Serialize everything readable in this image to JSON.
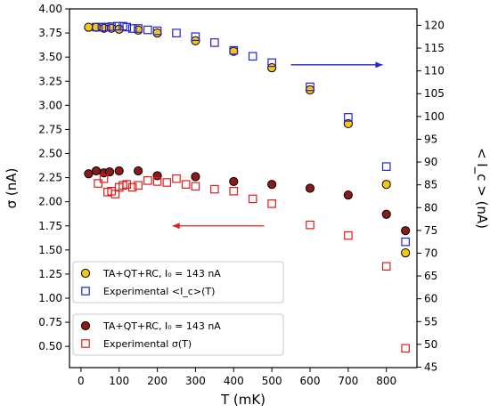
{
  "chart_data": {
    "type": "scatter",
    "x_label": "T  (mK)",
    "y_label_left": "σ  (nA)",
    "y_label_right": "< I_c >  (nA)",
    "x_ticks": [
      0,
      100,
      200,
      300,
      400,
      500,
      600,
      700,
      800
    ],
    "y_ticks_left": [
      "0.50",
      "0.75",
      "1.00",
      "1.25",
      "1.50",
      "1.75",
      "2.00",
      "2.25",
      "2.50",
      "2.75",
      "3.00",
      "3.25",
      "3.50",
      "3.75",
      "4.00"
    ],
    "y_ticks_right": [
      "45",
      "50",
      "55",
      "60",
      "65",
      "70",
      "75",
      "80",
      "85",
      "90",
      "95",
      "100",
      "105",
      "110",
      "115",
      "120"
    ],
    "x_range": [
      -30,
      880
    ],
    "y_range_left": [
      0.28,
      4.0
    ],
    "y_range_right": [
      44.9,
      123.6
    ],
    "series": [
      {
        "name": "TA+QT+RC, I₀ = 143 nA",
        "axis": "left",
        "marker": "circle",
        "fill": "#f5c518",
        "stroke": "#000000",
        "x": [
          20,
          40,
          60,
          80,
          100,
          150,
          200,
          300,
          400,
          500,
          600,
          700,
          800,
          850
        ],
        "y": [
          3.81,
          3.81,
          3.8,
          3.8,
          3.79,
          3.78,
          3.75,
          3.67,
          3.56,
          3.39,
          3.16,
          2.81,
          2.18,
          1.47
        ]
      },
      {
        "name": "Experimental <I_c>(T)",
        "axis": "right",
        "marker": "square",
        "fill": "none",
        "stroke": "#2323d6",
        "x": [
          40,
          55,
          65,
          80,
          95,
          110,
          120,
          135,
          150,
          175,
          200,
          250,
          300,
          350,
          400,
          450,
          500,
          600,
          700,
          800,
          850
        ],
        "y": [
          119.6,
          119.6,
          119.6,
          119.7,
          119.8,
          119.8,
          119.6,
          119.3,
          119.3,
          119.0,
          118.8,
          118.3,
          117.5,
          116.2,
          114.5,
          113.2,
          111.8,
          106.5,
          99.8,
          89.0,
          72.5
        ]
      },
      {
        "name": "TA+QT+RC, I₀ = 143 nA",
        "axis": "left",
        "marker": "circle",
        "fill": "#8b1a1a",
        "stroke": "#000000",
        "x": [
          20,
          40,
          60,
          75,
          100,
          150,
          200,
          300,
          400,
          500,
          600,
          700,
          800,
          850
        ],
        "y": [
          2.29,
          2.32,
          2.3,
          2.31,
          2.32,
          2.32,
          2.27,
          2.26,
          2.21,
          2.18,
          2.14,
          2.07,
          1.87,
          1.7
        ]
      },
      {
        "name": "Experimental σ(T)",
        "axis": "left",
        "marker": "square",
        "fill": "none",
        "stroke": "#e21b1b",
        "x": [
          45,
          60,
          70,
          80,
          90,
          100,
          110,
          120,
          135,
          150,
          175,
          200,
          225,
          250,
          275,
          300,
          350,
          400,
          450,
          500,
          600,
          700,
          800,
          850
        ],
        "y": [
          2.19,
          2.24,
          2.1,
          2.11,
          2.08,
          2.15,
          2.17,
          2.18,
          2.15,
          2.17,
          2.22,
          2.21,
          2.2,
          2.24,
          2.18,
          2.16,
          2.13,
          2.11,
          2.03,
          1.98,
          1.76,
          1.65,
          1.33,
          0.48
        ]
      }
    ],
    "arrows": [
      {
        "color": "#2323d6",
        "direction": "right",
        "x_from": 550,
        "x_to": 790,
        "y_left": 3.42
      },
      {
        "color": "#e21b1b",
        "direction": "left",
        "x_from": 480,
        "x_to": 240,
        "y_left": 1.75
      }
    ],
    "legends": [
      {
        "placement": "lower-left-upper",
        "entries": [
          0,
          1
        ]
      },
      {
        "placement": "lower-left",
        "entries": [
          2,
          3
        ]
      }
    ]
  }
}
